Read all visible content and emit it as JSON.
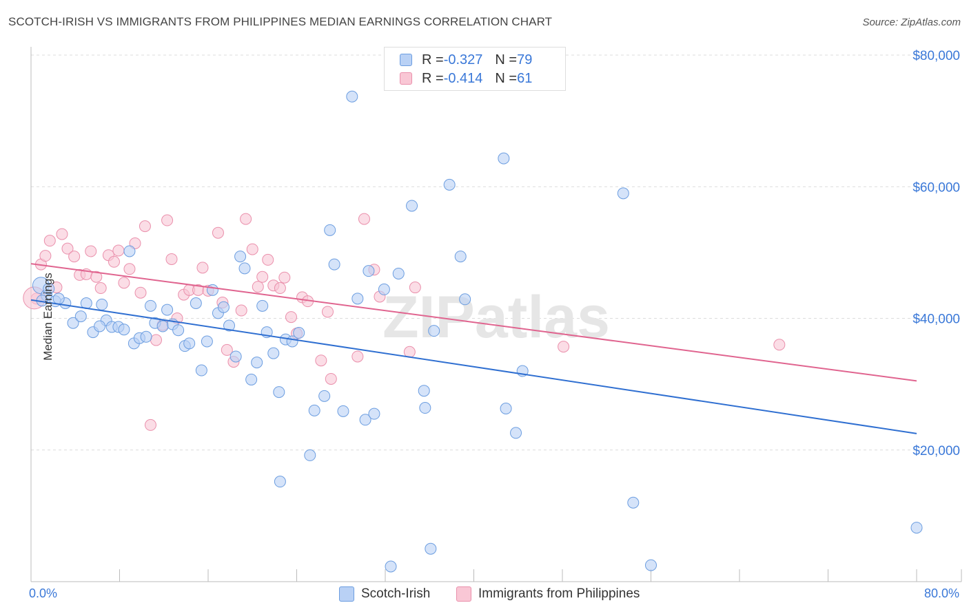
{
  "title": "SCOTCH-IRISH VS IMMIGRANTS FROM PHILIPPINES MEDIAN EARNINGS CORRELATION CHART",
  "source": "Source: ZipAtlas.com",
  "watermark": "ZIPatlas",
  "legend": {
    "rows": [
      {
        "r_label": "R = ",
        "r_value": "-0.327",
        "n_label": "N = ",
        "n_value": "79"
      },
      {
        "r_label": "R = ",
        "r_value": "-0.414",
        "n_label": "N = ",
        "n_value": "61"
      }
    ]
  },
  "colors": {
    "blue_fill": "#b9d1f5",
    "blue_stroke": "#6b9de0",
    "blue_line": "#2f6fd1",
    "pink_fill": "#f9c7d5",
    "pink_stroke": "#ea8fab",
    "pink_line": "#e0648f",
    "axis_text": "#3a78d8",
    "grid": "#dcdcdc"
  },
  "chart_data": {
    "type": "scatter",
    "xlabel": "",
    "ylabel": "Median Earnings",
    "xlim": [
      0,
      80
    ],
    "ylim": [
      0,
      80000
    ],
    "x_tick_labels": [
      "0.0%",
      "80.0%"
    ],
    "y_ticks": [
      20000,
      40000,
      60000,
      80000
    ],
    "y_tick_labels": [
      "$20,000",
      "$40,000",
      "$60,000",
      "$80,000"
    ],
    "grid": true,
    "legend_position": "bottom",
    "series": [
      {
        "name": "Scotch-Irish",
        "color": "#b9d1f5",
        "trend": {
          "x": [
            0,
            80
          ],
          "y": [
            42800,
            22500
          ]
        },
        "points": [
          [
            0.9,
            45000
          ],
          [
            1.4,
            43500
          ],
          [
            1.6,
            44500
          ],
          [
            2.2,
            42600
          ],
          [
            3.1,
            42300
          ],
          [
            3.8,
            39300
          ],
          [
            4.5,
            40300
          ],
          [
            5.0,
            42300
          ],
          [
            5.6,
            37900
          ],
          [
            6.4,
            42100
          ],
          [
            6.8,
            39700
          ],
          [
            7.3,
            38700
          ],
          [
            7.9,
            38700
          ],
          [
            8.4,
            38300
          ],
          [
            8.9,
            50200
          ],
          [
            9.3,
            36200
          ],
          [
            9.8,
            37000
          ],
          [
            10.4,
            37200
          ],
          [
            10.8,
            41900
          ],
          [
            11.2,
            39300
          ],
          [
            11.9,
            38800
          ],
          [
            12.3,
            41300
          ],
          [
            12.8,
            39100
          ],
          [
            13.3,
            38200
          ],
          [
            13.9,
            35800
          ],
          [
            14.3,
            36200
          ],
          [
            14.9,
            42300
          ],
          [
            15.4,
            32100
          ],
          [
            15.9,
            36500
          ],
          [
            16.4,
            44300
          ],
          [
            16.9,
            40800
          ],
          [
            17.4,
            41700
          ],
          [
            17.9,
            38900
          ],
          [
            18.5,
            34200
          ],
          [
            18.9,
            49400
          ],
          [
            19.3,
            47600
          ],
          [
            19.9,
            30700
          ],
          [
            20.4,
            33300
          ],
          [
            20.9,
            41900
          ],
          [
            21.3,
            37900
          ],
          [
            21.9,
            34700
          ],
          [
            22.4,
            28800
          ],
          [
            23.0,
            36800
          ],
          [
            23.6,
            36500
          ],
          [
            24.2,
            37800
          ],
          [
            25.2,
            19200
          ],
          [
            25.6,
            26000
          ],
          [
            26.5,
            28200
          ],
          [
            27.0,
            53400
          ],
          [
            27.4,
            48200
          ],
          [
            28.2,
            25900
          ],
          [
            29.0,
            73700
          ],
          [
            29.5,
            43000
          ],
          [
            30.2,
            24600
          ],
          [
            30.5,
            47200
          ],
          [
            31.0,
            25500
          ],
          [
            31.9,
            44400
          ],
          [
            32.5,
            2300
          ],
          [
            33.2,
            46800
          ],
          [
            34.4,
            57100
          ],
          [
            35.5,
            29000
          ],
          [
            35.6,
            26400
          ],
          [
            36.1,
            5000
          ],
          [
            36.4,
            38100
          ],
          [
            37.8,
            60300
          ],
          [
            38.8,
            49400
          ],
          [
            39.2,
            42900
          ],
          [
            42.7,
            64300
          ],
          [
            42.9,
            26300
          ],
          [
            43.8,
            22600
          ],
          [
            44.4,
            32000
          ],
          [
            53.5,
            59000
          ],
          [
            54.4,
            12000
          ],
          [
            56.0,
            2500
          ],
          [
            22.5,
            15200
          ],
          [
            80.0,
            8200
          ],
          [
            1.0,
            42700
          ],
          [
            2.5,
            43000
          ],
          [
            6.2,
            38800
          ]
        ]
      },
      {
        "name": "Immigrants from Philippines",
        "color": "#f9c7d5",
        "trend": {
          "x": [
            0,
            80
          ],
          "y": [
            48300,
            30500
          ]
        },
        "points": [
          [
            0.5,
            43000
          ],
          [
            0.9,
            48200
          ],
          [
            1.3,
            49500
          ],
          [
            1.7,
            51800
          ],
          [
            2.3,
            44700
          ],
          [
            2.8,
            52800
          ],
          [
            3.3,
            50600
          ],
          [
            3.9,
            49400
          ],
          [
            4.4,
            46600
          ],
          [
            5.0,
            46700
          ],
          [
            5.4,
            50200
          ],
          [
            5.9,
            46300
          ],
          [
            6.3,
            44600
          ],
          [
            7.0,
            49600
          ],
          [
            7.5,
            48600
          ],
          [
            7.9,
            50300
          ],
          [
            8.4,
            45400
          ],
          [
            8.9,
            47500
          ],
          [
            9.4,
            51400
          ],
          [
            9.9,
            43900
          ],
          [
            10.3,
            54000
          ],
          [
            10.8,
            23800
          ],
          [
            11.3,
            36700
          ],
          [
            11.9,
            39000
          ],
          [
            12.3,
            54900
          ],
          [
            12.7,
            49000
          ],
          [
            13.2,
            40000
          ],
          [
            13.8,
            43600
          ],
          [
            14.3,
            44300
          ],
          [
            15.1,
            44300
          ],
          [
            15.5,
            47700
          ],
          [
            16.0,
            44200
          ],
          [
            16.9,
            53000
          ],
          [
            17.3,
            42400
          ],
          [
            17.7,
            35200
          ],
          [
            18.3,
            33400
          ],
          [
            19.0,
            41200
          ],
          [
            19.4,
            55100
          ],
          [
            20.0,
            50500
          ],
          [
            20.5,
            44800
          ],
          [
            20.9,
            46300
          ],
          [
            21.4,
            48900
          ],
          [
            21.9,
            45000
          ],
          [
            22.5,
            44600
          ],
          [
            22.9,
            46200
          ],
          [
            23.5,
            40200
          ],
          [
            24.0,
            37700
          ],
          [
            24.5,
            43200
          ],
          [
            25.0,
            42600
          ],
          [
            26.2,
            33600
          ],
          [
            26.8,
            41000
          ],
          [
            27.1,
            30800
          ],
          [
            29.5,
            34200
          ],
          [
            30.1,
            55100
          ],
          [
            31.0,
            47400
          ],
          [
            31.5,
            43300
          ],
          [
            34.2,
            34900
          ],
          [
            34.7,
            44700
          ],
          [
            48.1,
            35700
          ],
          [
            67.6,
            36000
          ],
          [
            0.3,
            43100
          ]
        ]
      }
    ]
  },
  "bottom_legend": {
    "items": [
      "Scotch-Irish",
      "Immigrants from Philippines"
    ]
  }
}
